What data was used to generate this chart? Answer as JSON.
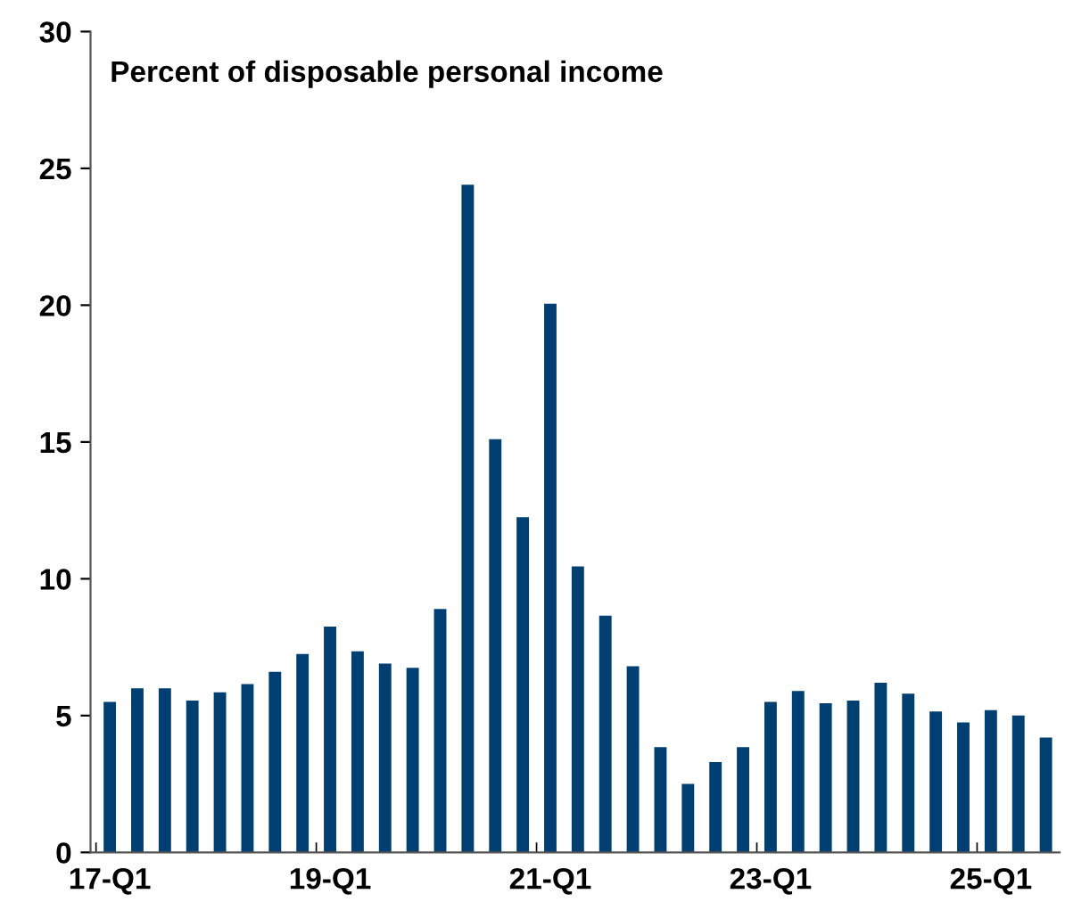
{
  "chart_data": {
    "type": "bar",
    "title": "Percent of disposable personal income",
    "categories": [
      "17-Q1",
      null,
      null,
      null,
      null,
      null,
      null,
      null,
      "19-Q1",
      null,
      null,
      null,
      null,
      null,
      null,
      null,
      "21-Q1",
      null,
      null,
      null,
      null,
      null,
      null,
      null,
      "23-Q1",
      null,
      null,
      null,
      null,
      null,
      null,
      null,
      "25-Q1",
      null,
      null
    ],
    "values": [
      5.5,
      6.0,
      6.0,
      5.55,
      5.85,
      6.15,
      6.6,
      7.25,
      8.25,
      7.35,
      6.9,
      6.75,
      8.9,
      24.4,
      15.1,
      12.25,
      20.05,
      10.45,
      8.65,
      6.8,
      3.85,
      2.5,
      3.3,
      3.85,
      5.5,
      5.9,
      5.45,
      5.55,
      6.2,
      5.8,
      5.15,
      4.75,
      5.2,
      5.0,
      4.2
    ],
    "color": "#003f72",
    "ylim": [
      0,
      30
    ],
    "yticks": [
      0,
      5,
      10,
      15,
      20,
      25,
      30
    ],
    "grid": false,
    "legend": false
  }
}
